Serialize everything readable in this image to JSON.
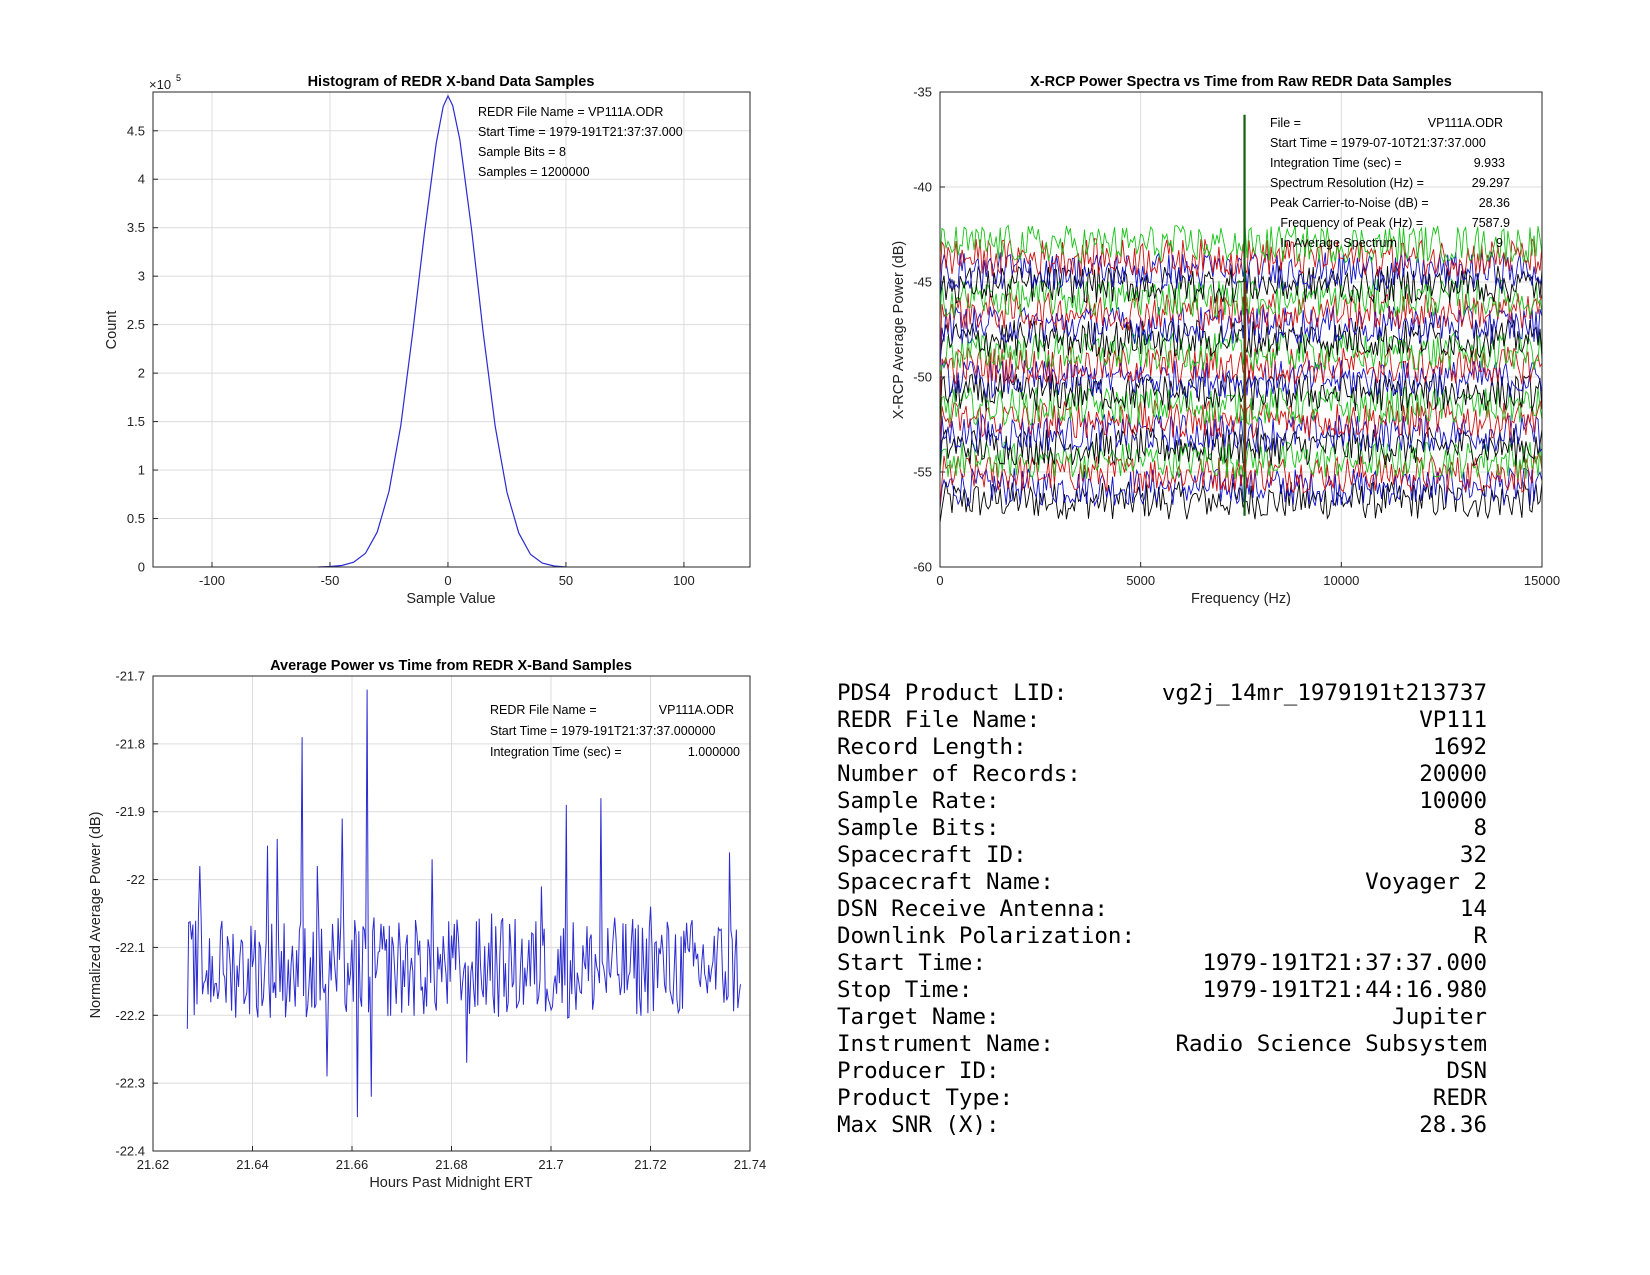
{
  "charts": {
    "histogram": {
      "title": "Histogram of REDR X-band Data Samples",
      "exponent_base": "×10",
      "exponent_power": "5",
      "annotation": [
        "REDR File Name = VP111A.ODR",
        "Start Time = 1979-191T21:37:37.000",
        "Sample Bits = 8",
        "Samples = 1200000"
      ]
    },
    "spectra": {
      "title": "X-RCP Power Spectra vs Time from Raw REDR Data Samples",
      "annotation": [
        {
          "label": "File =",
          "value": "VP111A.ODR"
        },
        {
          "label": "Start Time = 1979-07-10T21:37:37.000",
          "value": ""
        },
        {
          "label": "Integration Time (sec) =",
          "value": "9.933"
        },
        {
          "label": "Spectrum Resolution (Hz) =",
          "value": "29.297"
        },
        {
          "label": "Peak Carrier-to-Noise (dB) =",
          "value": "28.36"
        },
        {
          "label": "   Frequency of Peak (Hz) =",
          "value": "7587.9"
        },
        {
          "label": "   In Average Spectrum",
          "value": "9"
        }
      ]
    },
    "power": {
      "title": "Average Power vs Time from REDR X-Band Samples",
      "annotation": [
        {
          "label": "REDR File Name =",
          "value": "VP111A.ODR"
        },
        {
          "label": "Start Time = 1979-191T21:37:37.000000",
          "value": ""
        },
        {
          "label": "Integration Time (sec) =",
          "value": "1.000000"
        }
      ]
    }
  },
  "chart_data": [
    {
      "type": "line",
      "title": "Histogram of REDR X-band Data Samples",
      "xlabel": "Sample Value",
      "ylabel": "Count",
      "xlim": [
        -125,
        128
      ],
      "ylim": [
        0,
        490000
      ],
      "xticks": [
        "-100",
        "-50",
        "0",
        "50",
        "100"
      ],
      "yticks": [
        "0",
        "0.5",
        "1",
        "1.5",
        "2",
        "2.5",
        "3",
        "3.5",
        "4",
        "4.5"
      ],
      "grid": true,
      "color": "#2b2bd1",
      "x": [
        -55,
        -50,
        -45,
        -40,
        -35,
        -30,
        -25,
        -20,
        -15,
        -10,
        -5,
        -2,
        0,
        2,
        5,
        10,
        15,
        20,
        25,
        30,
        35,
        40,
        45,
        50
      ],
      "y": [
        0,
        500,
        1500,
        5000,
        14000,
        36000,
        78000,
        146000,
        241000,
        344000,
        437000,
        475000,
        486000,
        476000,
        441000,
        348000,
        240000,
        145000,
        77000,
        35000,
        13000,
        4000,
        1000,
        0
      ]
    },
    {
      "type": "line",
      "title": "X-RCP Power Spectra vs Time from Raw REDR Data Samples",
      "xlabel": "Frequency (Hz)",
      "ylabel": "X-RCP Average Power (dB)",
      "xlim": [
        0,
        15000
      ],
      "ylim": [
        -60,
        -35
      ],
      "xticks": [
        "0",
        "5000",
        "10000",
        "15000"
      ],
      "yticks": [
        "-35",
        "-40",
        "-45",
        "-50",
        "-55",
        "-60"
      ],
      "grid": true,
      "series_colors": [
        "#000000",
        "#1010c8",
        "#d01010",
        "#18c418"
      ],
      "series_count": 20,
      "noise_floor_range": [
        -56.5,
        -43
      ],
      "noise_amplitude_db": 1.0,
      "peak_frequency": 7587.9,
      "peak_level": -36.2
    },
    {
      "type": "line",
      "title": "Average Power vs Time from REDR X-Band Samples",
      "xlabel": "Hours Past Midnight ERT",
      "ylabel": "Normalized Average Power (dB)",
      "xlim": [
        21.62,
        21.74
      ],
      "ylim": [
        -22.4,
        -21.7
      ],
      "xticks": [
        "21.62",
        "21.64",
        "21.66",
        "21.68",
        "21.7",
        "21.72",
        "21.74"
      ],
      "yticks": [
        "-21.7",
        "-21.8",
        "-21.9",
        "-22",
        "-22.1",
        "-22.2",
        "-22.3",
        "-22.4"
      ],
      "grid": true,
      "color": "#2b2bd1",
      "x_start": 21.6269,
      "x_end": 21.7381,
      "mean": -22.13,
      "spikes": [
        {
          "x": 21.6294,
          "y": -21.98
        },
        {
          "x": 21.643,
          "y": -21.95
        },
        {
          "x": 21.645,
          "y": -21.94
        },
        {
          "x": 21.65,
          "y": -21.79
        },
        {
          "x": 21.653,
          "y": -21.98
        },
        {
          "x": 21.658,
          "y": -21.91
        },
        {
          "x": 21.663,
          "y": -21.72
        },
        {
          "x": 21.661,
          "y": -22.35
        },
        {
          "x": 21.664,
          "y": -22.32
        },
        {
          "x": 21.655,
          "y": -22.29
        },
        {
          "x": 21.676,
          "y": -21.97
        },
        {
          "x": 21.683,
          "y": -22.27
        },
        {
          "x": 21.688,
          "y": -22.05
        },
        {
          "x": 21.698,
          "y": -22.01
        },
        {
          "x": 21.703,
          "y": -21.89
        },
        {
          "x": 21.71,
          "y": -21.88
        },
        {
          "x": 21.72,
          "y": -22.04
        },
        {
          "x": 21.736,
          "y": -21.96
        }
      ]
    }
  ],
  "info": [
    {
      "label": "PDS4 Product LID:",
      "value": "vg2j_14mr_1979191t213737"
    },
    {
      "label": "REDR File Name:",
      "value": "VP111"
    },
    {
      "label": "Record Length:",
      "value": "1692"
    },
    {
      "label": "Number of Records:",
      "value": "20000"
    },
    {
      "label": "Sample Rate:",
      "value": "10000"
    },
    {
      "label": "Sample Bits:",
      "value": "8"
    },
    {
      "label": "Spacecraft ID:",
      "value": "32"
    },
    {
      "label": "Spacecraft Name:",
      "value": "Voyager 2"
    },
    {
      "label": "DSN Receive Antenna:",
      "value": "14"
    },
    {
      "label": "Downlink Polarization:",
      "value": "R"
    },
    {
      "label": "Start Time:",
      "value": "1979-191T21:37:37.000"
    },
    {
      "label": "Stop Time:",
      "value": "1979-191T21:44:16.980"
    },
    {
      "label": "Target Name:",
      "value": "Jupiter"
    },
    {
      "label": "Instrument Name:",
      "value": "Radio Science Subsystem"
    },
    {
      "label": "Producer ID:",
      "value": "DSN"
    },
    {
      "label": "Product Type:",
      "value": "REDR"
    },
    {
      "label": "Max SNR (X):",
      "value": "28.36"
    }
  ]
}
